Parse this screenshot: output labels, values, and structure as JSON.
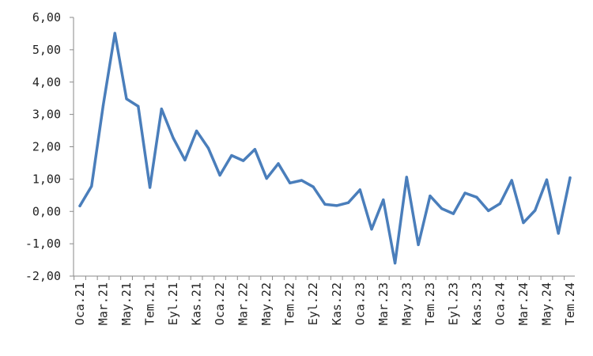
{
  "chart_data": {
    "type": "line",
    "title": "",
    "xlabel": "",
    "ylabel": "",
    "ylim": [
      -2,
      6
    ],
    "ytick_values": [
      -2,
      -1,
      0,
      1,
      2,
      3,
      4,
      5,
      6
    ],
    "ytick_labels": [
      "-2,00",
      "-1,00",
      "0,00",
      "1,00",
      "2,00",
      "3,00",
      "4,00",
      "5,00",
      "6,00"
    ],
    "x": [
      "2021-01",
      "2021-02",
      "2021-03",
      "2021-04",
      "2021-05",
      "2021-06",
      "2021-07",
      "2021-08",
      "2021-09",
      "2021-10",
      "2021-11",
      "2021-12",
      "2022-01",
      "2022-02",
      "2022-03",
      "2022-04",
      "2022-05",
      "2022-06",
      "2022-07",
      "2022-08",
      "2022-09",
      "2022-10",
      "2022-11",
      "2022-12",
      "2023-01",
      "2023-02",
      "2023-03",
      "2023-04",
      "2023-05",
      "2023-06",
      "2023-07",
      "2023-08",
      "2023-09",
      "2023-10",
      "2023-11",
      "2023-12",
      "2024-01",
      "2024-02",
      "2024-03",
      "2024-04",
      "2024-05",
      "2024-06",
      "2024-07"
    ],
    "xtick_labels": [
      "Oca.21",
      "Mar.21",
      "May.21",
      "Tem.21",
      "Eyl.21",
      "Kas.21",
      "Oca.22",
      "Mar.22",
      "May.22",
      "Tem.22",
      "Eyl.22",
      "Kas.22",
      "Oca.23",
      "Mar.23",
      "May.23",
      "Tem.23",
      "Eyl.23",
      "Kas.23",
      "Oca.24",
      "Mar.24",
      "May.24",
      "Tem.24"
    ],
    "grid": false,
    "legend": "none",
    "series": [
      {
        "color": "#4a7ebb",
        "values": [
          0.17,
          0.78,
          3.28,
          5.51,
          3.48,
          3.25,
          0.74,
          3.17,
          2.27,
          1.59,
          2.49,
          1.96,
          1.12,
          1.73,
          1.57,
          1.92,
          1.02,
          1.48,
          0.88,
          0.96,
          0.76,
          0.22,
          0.18,
          0.27,
          0.67,
          -0.55,
          0.36,
          -1.6,
          1.06,
          -1.03,
          0.48,
          0.09,
          -0.07,
          0.57,
          0.44,
          0.02,
          0.24,
          0.96,
          -0.35,
          0.03,
          0.98,
          -0.68,
          1.04
        ]
      }
    ]
  }
}
